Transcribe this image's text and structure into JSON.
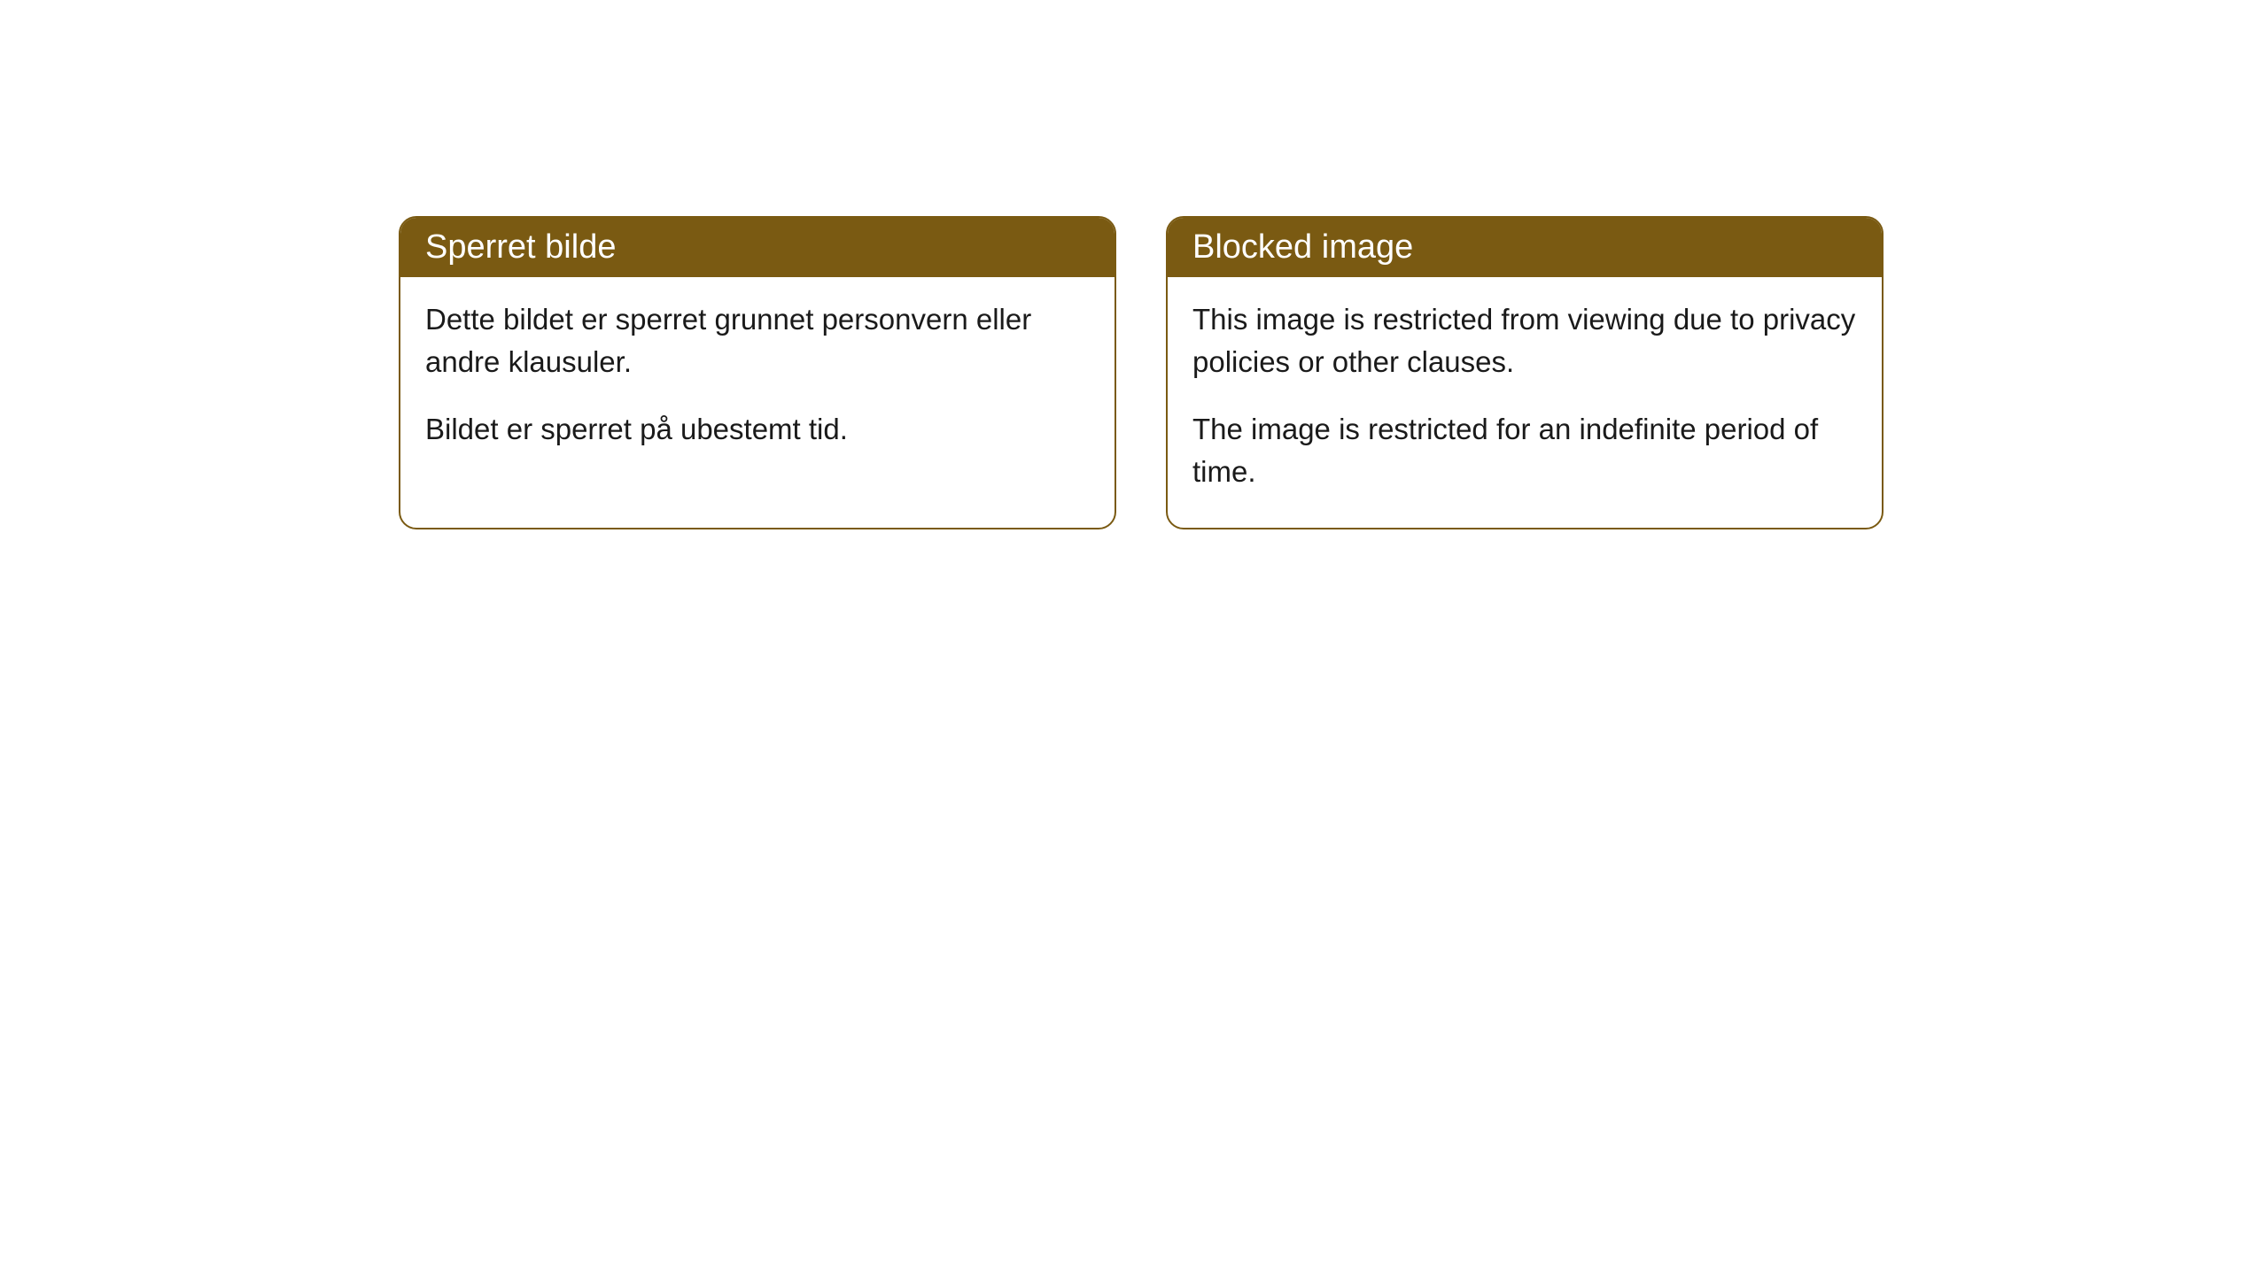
{
  "cards": [
    {
      "title": "Sperret bilde",
      "paragraph1": "Dette bildet er sperret grunnet personvern eller andre klausuler.",
      "paragraph2": "Bildet er sperret på ubestemt tid."
    },
    {
      "title": "Blocked image",
      "paragraph1": "This image is restricted from viewing due to privacy policies or other clauses.",
      "paragraph2": "The image is restricted for an indefinite period of time."
    }
  ],
  "style": {
    "header_background": "#7a5a12",
    "header_text_color": "#ffffff",
    "border_color": "#7a5a12",
    "body_background": "#ffffff",
    "body_text_color": "#1a1a1a",
    "border_radius": 20,
    "title_fontsize": 38,
    "body_fontsize": 33
  }
}
